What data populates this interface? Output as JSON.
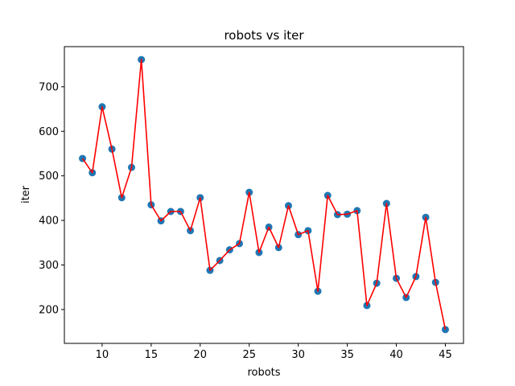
{
  "chart_data": {
    "type": "scatter",
    "title": "robots vs iter",
    "xlabel": "robots",
    "ylabel": "iter",
    "xlim": [
      6.15,
      46.85
    ],
    "ylim": [
      124,
      790
    ],
    "xticks": [
      10,
      15,
      20,
      25,
      30,
      35,
      40,
      45
    ],
    "yticks": [
      200,
      300,
      400,
      500,
      600,
      700
    ],
    "grid": false,
    "series": [
      {
        "style": "markers",
        "color": "#1f77b4",
        "x": [
          8,
          9,
          10,
          11,
          12,
          13,
          14,
          15,
          16,
          17,
          18,
          19,
          20,
          21,
          22,
          23,
          24,
          25,
          26,
          27,
          28,
          29,
          30,
          31,
          32,
          33,
          34,
          35,
          36,
          37,
          38,
          39,
          40,
          41,
          42,
          43,
          44,
          45
        ],
        "y": [
          539,
          507,
          655,
          560,
          451,
          519,
          761,
          435,
          399,
          420,
          420,
          377,
          451,
          288,
          310,
          334,
          348,
          463,
          328,
          385,
          339,
          433,
          368,
          377,
          241,
          456,
          413,
          414,
          422,
          209,
          259,
          438,
          270,
          227,
          274,
          407,
          261,
          155
        ]
      },
      {
        "style": "line",
        "color": "#ff0000",
        "x": [
          8,
          9,
          10,
          11,
          12,
          13,
          14,
          15,
          16,
          17,
          18,
          19,
          20,
          21,
          22,
          23,
          24,
          25,
          26,
          27,
          28,
          29,
          30,
          31,
          32,
          33,
          34,
          35,
          36,
          37,
          38,
          39,
          40,
          41,
          42,
          43,
          44,
          45
        ],
        "y": [
          539,
          507,
          655,
          560,
          451,
          519,
          761,
          435,
          399,
          420,
          420,
          377,
          451,
          288,
          310,
          334,
          348,
          463,
          328,
          385,
          339,
          433,
          368,
          377,
          241,
          456,
          413,
          414,
          422,
          209,
          259,
          438,
          270,
          227,
          274,
          407,
          261,
          155
        ]
      }
    ]
  }
}
